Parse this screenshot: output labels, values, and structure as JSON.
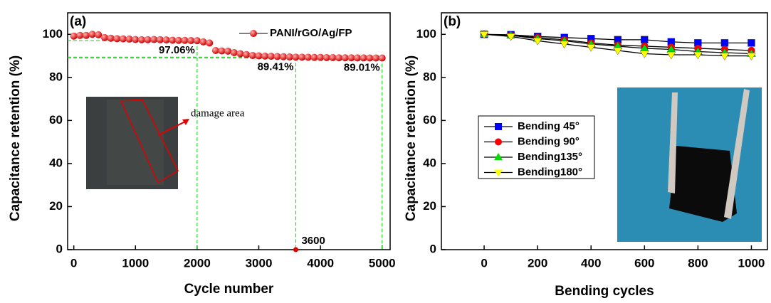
{
  "chart_data": [
    {
      "type": "scatter",
      "panel_label": "(a)",
      "x_label": "Cycle number",
      "y_label": "Capacitance retention (%)",
      "xlim": [
        -100,
        5130
      ],
      "ylim": [
        0,
        110
      ],
      "xticks": [
        0,
        1000,
        2000,
        3000,
        4000,
        5000
      ],
      "yticks": [
        0,
        20,
        40,
        60,
        80,
        100
      ],
      "series": [
        {
          "name": "PANI/rGO/Ag/FP",
          "color": "#e8000b",
          "marker": "circle",
          "x": [
            0,
            100,
            200,
            300,
            400,
            500,
            600,
            700,
            800,
            900,
            1000,
            1100,
            1200,
            1300,
            1400,
            1500,
            1600,
            1700,
            1800,
            1900,
            2000,
            2100,
            2200,
            2300,
            2400,
            2500,
            2600,
            2700,
            2800,
            2900,
            3000,
            3100,
            3200,
            3300,
            3400,
            3500,
            3600,
            3700,
            3800,
            3900,
            4000,
            4100,
            4200,
            4300,
            4400,
            4500,
            4600,
            4700,
            4800,
            4900,
            5000
          ],
          "values": [
            99.2,
            99.5,
            99.5,
            100,
            99.8,
            98.5,
            98.2,
            98,
            97.9,
            97.8,
            97.6,
            97.5,
            97.5,
            97.6,
            97.5,
            97.4,
            97.3,
            97.2,
            97.2,
            97.1,
            97.06,
            96.5,
            96,
            92.5,
            92.3,
            92.2,
            91.5,
            91,
            90.6,
            90.2,
            90,
            89.9,
            89.8,
            89.7,
            89.6,
            89.5,
            89.41,
            89.4,
            89.35,
            89.3,
            89.3,
            89.2,
            89.2,
            89.1,
            89.1,
            89.1,
            89.05,
            89.05,
            89.02,
            89.02,
            89.01
          ]
        }
      ],
      "annotations": [
        {
          "text": "97.06%",
          "x": 2000,
          "y": 97.06
        },
        {
          "text": "89.41%",
          "x": 3600,
          "y": 89.41
        },
        {
          "text": "89.01%",
          "x": 5000,
          "y": 89.01
        },
        {
          "text": "3600",
          "x": 3600,
          "y": 0
        }
      ],
      "inset_label": "damage area",
      "legend": "top-right"
    },
    {
      "type": "line",
      "panel_label": "(b)",
      "x_label": "Bending cycles",
      "y_label": "Capacitance retention (%)",
      "xlim": [
        -160,
        1060
      ],
      "ylim": [
        0,
        110
      ],
      "xticks": [
        0,
        200,
        400,
        600,
        800,
        1000
      ],
      "yticks": [
        0,
        20,
        40,
        60,
        80,
        100
      ],
      "x": [
        0,
        100,
        200,
        300,
        400,
        500,
        600,
        700,
        800,
        900,
        1000
      ],
      "series": [
        {
          "name": "Bending 45°",
          "color": "#0000ff",
          "marker": "square",
          "values": [
            100,
            99.8,
            99,
            98.5,
            98,
            97.5,
            97.5,
            96.5,
            96,
            96,
            96
          ]
        },
        {
          "name": "Bending 90°",
          "color": "#ff0000",
          "marker": "circle",
          "values": [
            100,
            99.5,
            98.5,
            97.5,
            96,
            95,
            94.5,
            94,
            93.5,
            93,
            92.5
          ]
        },
        {
          "name": "Bending135°",
          "color": "#00dd00",
          "marker": "triangle-up",
          "values": [
            100,
            99.5,
            98,
            97,
            95.5,
            94.5,
            93.5,
            93,
            92,
            91.5,
            91
          ]
        },
        {
          "name": "Bending180°",
          "color": "#ffff00",
          "marker": "triangle-down",
          "values": [
            100,
            99,
            97,
            95.5,
            94,
            92.5,
            91,
            90.5,
            90.5,
            90,
            90
          ]
        }
      ],
      "legend": "middle-left"
    }
  ]
}
